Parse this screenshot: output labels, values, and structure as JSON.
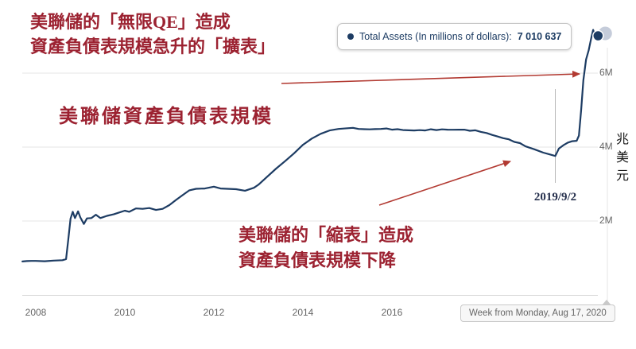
{
  "annotations": {
    "qe_note_line1": "美聯儲的「無限QE」造成",
    "qe_note_line2": "資產負債表規模急升的「擴表」",
    "taper_note_line1": "美聯儲的「縮表」造成",
    "taper_note_line2": "資產負債表規模下降",
    "unit_label": "兆美元"
  },
  "tooltip": {
    "label": "Total Assets (In millions of dollars):",
    "value": "7 010 637"
  },
  "date_tooltip": {
    "text": "Week from Monday, Aug 17, 2020"
  },
  "colors": {
    "line": "#1d3c63",
    "annotation": "#9c2231",
    "arrow": "#b23a32",
    "grid": "#e6e6e6",
    "axis_text": "#666666"
  },
  "chart_data": {
    "type": "line",
    "title": "美聯儲資產負債表規模",
    "unit": "In millions of dollars",
    "grid": "horizontal",
    "legend": "none",
    "xlim": [
      2007.7,
      2020.8
    ],
    "ylim": [
      0,
      7400000
    ],
    "x_ticks": [
      2008,
      2010,
      2012,
      2014,
      2016
    ],
    "x_tick_labels": [
      "2008",
      "2010",
      "2012",
      "2014",
      "2016"
    ],
    "y_ticks": [
      6000000,
      4000000,
      2000000
    ],
    "y_tick_labels": [
      "6M",
      "4M",
      "2M"
    ],
    "marker": {
      "x": 2019.67,
      "label": "2019/9/2"
    },
    "series": [
      {
        "name": "Total Assets",
        "points": [
          [
            2007.7,
            905000
          ],
          [
            2008.0,
            921000
          ],
          [
            2008.2,
            912000
          ],
          [
            2008.4,
            930000
          ],
          [
            2008.6,
            940000
          ],
          [
            2008.68,
            970000
          ],
          [
            2008.73,
            1500000
          ],
          [
            2008.78,
            2060000
          ],
          [
            2008.83,
            2250000
          ],
          [
            2008.88,
            2080000
          ],
          [
            2008.95,
            2260000
          ],
          [
            2009.0,
            2100000
          ],
          [
            2009.08,
            1920000
          ],
          [
            2009.15,
            2070000
          ],
          [
            2009.25,
            2080000
          ],
          [
            2009.35,
            2170000
          ],
          [
            2009.45,
            2080000
          ],
          [
            2009.6,
            2140000
          ],
          [
            2009.75,
            2180000
          ],
          [
            2009.9,
            2240000
          ],
          [
            2010.0,
            2280000
          ],
          [
            2010.1,
            2250000
          ],
          [
            2010.25,
            2340000
          ],
          [
            2010.4,
            2330000
          ],
          [
            2010.55,
            2350000
          ],
          [
            2010.7,
            2300000
          ],
          [
            2010.85,
            2330000
          ],
          [
            2011.0,
            2430000
          ],
          [
            2011.15,
            2570000
          ],
          [
            2011.3,
            2700000
          ],
          [
            2011.45,
            2830000
          ],
          [
            2011.6,
            2870000
          ],
          [
            2011.8,
            2880000
          ],
          [
            2012.0,
            2930000
          ],
          [
            2012.15,
            2880000
          ],
          [
            2012.3,
            2870000
          ],
          [
            2012.5,
            2860000
          ],
          [
            2012.7,
            2820000
          ],
          [
            2012.9,
            2900000
          ],
          [
            2013.0,
            2980000
          ],
          [
            2013.2,
            3200000
          ],
          [
            2013.4,
            3420000
          ],
          [
            2013.6,
            3620000
          ],
          [
            2013.8,
            3830000
          ],
          [
            2014.0,
            4060000
          ],
          [
            2014.2,
            4230000
          ],
          [
            2014.4,
            4360000
          ],
          [
            2014.6,
            4450000
          ],
          [
            2014.8,
            4490000
          ],
          [
            2015.0,
            4510000
          ],
          [
            2015.25,
            4490000
          ],
          [
            2015.5,
            4480000
          ],
          [
            2015.75,
            4490000
          ],
          [
            2016.0,
            4470000
          ],
          [
            2016.25,
            4460000
          ],
          [
            2016.5,
            4450000
          ],
          [
            2016.75,
            4450000
          ],
          [
            2017.0,
            4460000
          ],
          [
            2017.25,
            4470000
          ],
          [
            2017.5,
            4470000
          ],
          [
            2017.75,
            4440000
          ],
          [
            2018.0,
            4410000
          ],
          [
            2018.25,
            4330000
          ],
          [
            2018.5,
            4240000
          ],
          [
            2018.75,
            4140000
          ],
          [
            2019.0,
            4020000
          ],
          [
            2019.2,
            3940000
          ],
          [
            2019.4,
            3850000
          ],
          [
            2019.55,
            3800000
          ],
          [
            2019.67,
            3760000
          ],
          [
            2019.75,
            3960000
          ],
          [
            2019.85,
            4050000
          ],
          [
            2019.95,
            4120000
          ],
          [
            2020.05,
            4160000
          ],
          [
            2020.15,
            4170000
          ],
          [
            2020.2,
            4310000
          ],
          [
            2020.25,
            5000000
          ],
          [
            2020.3,
            5810000
          ],
          [
            2020.36,
            6370000
          ],
          [
            2020.42,
            6620000
          ],
          [
            2020.48,
            6970000
          ],
          [
            2020.52,
            7170000
          ],
          [
            2020.56,
            7010000
          ],
          [
            2020.6,
            6950000
          ],
          [
            2020.63,
            7010637
          ]
        ]
      }
    ]
  }
}
